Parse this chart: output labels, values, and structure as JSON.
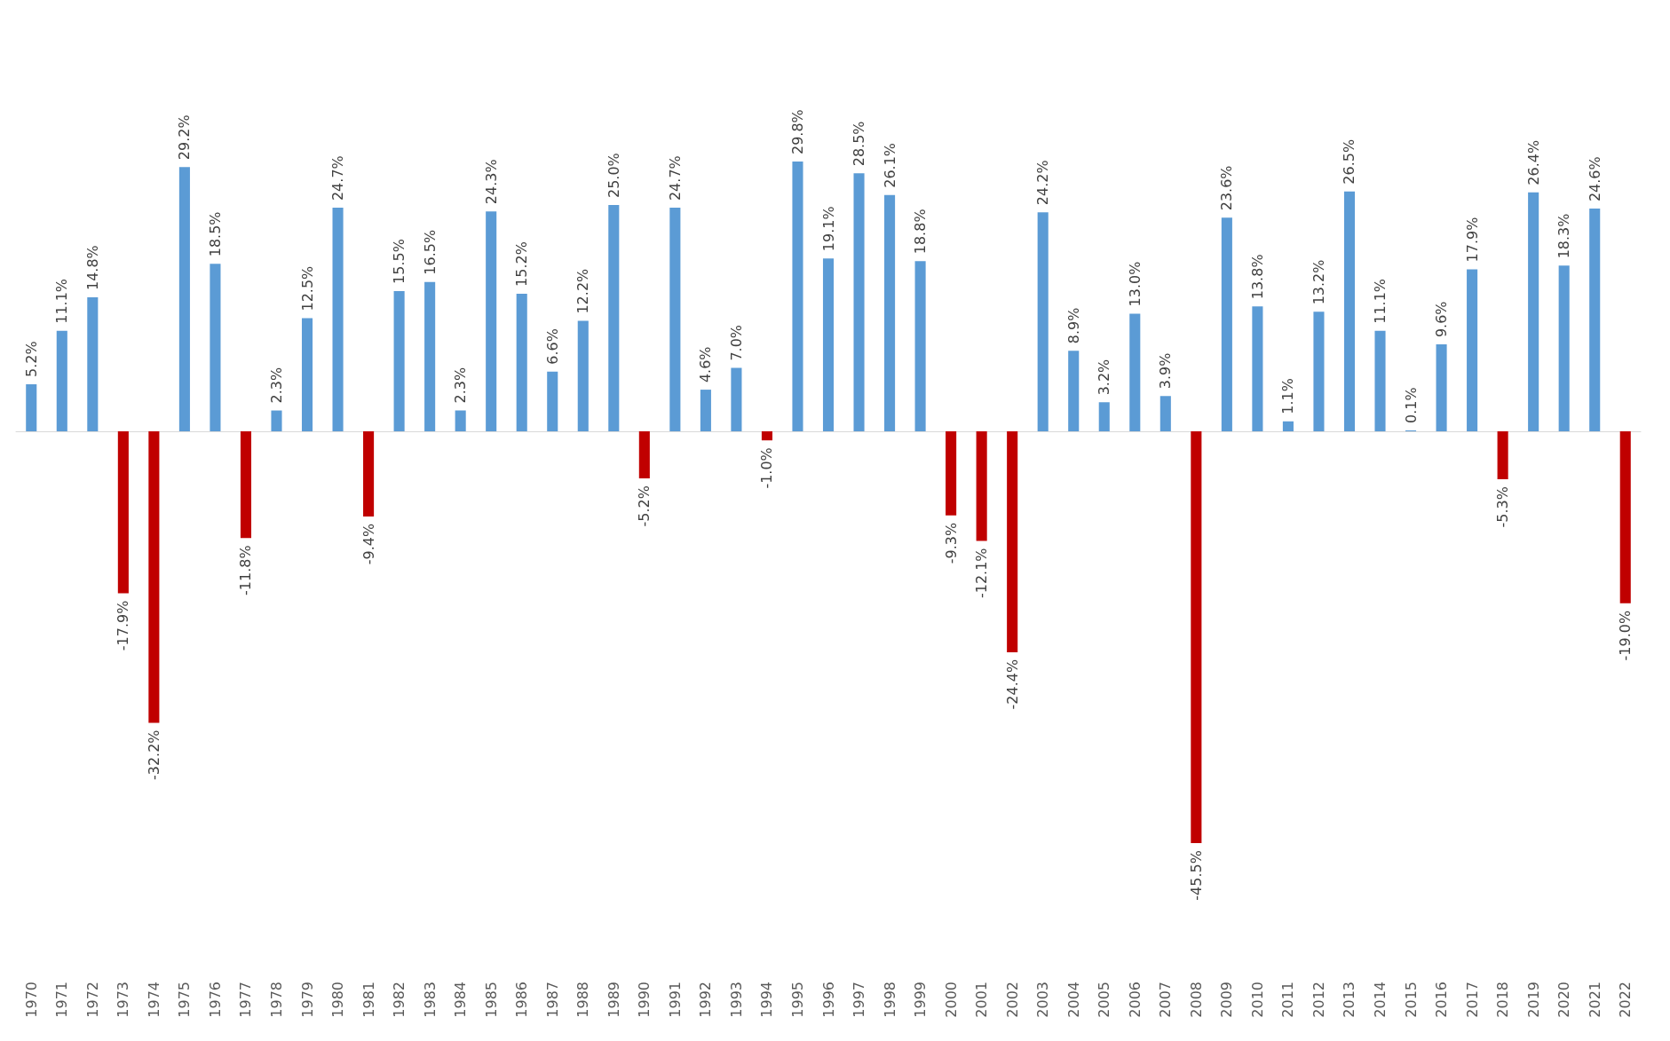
{
  "chart_data": {
    "type": "bar",
    "categories": [
      "1970",
      "1971",
      "1972",
      "1973",
      "1974",
      "1975",
      "1976",
      "1977",
      "1978",
      "1979",
      "1980",
      "1981",
      "1982",
      "1983",
      "1984",
      "1985",
      "1986",
      "1987",
      "1988",
      "1989",
      "1990",
      "1991",
      "1992",
      "1993",
      "1994",
      "1995",
      "1996",
      "1997",
      "1998",
      "1999",
      "2000",
      "2001",
      "2002",
      "2003",
      "2004",
      "2005",
      "2006",
      "2007",
      "2008",
      "2009",
      "2010",
      "2011",
      "2012",
      "2013",
      "2014",
      "2015",
      "2016",
      "2017",
      "2018",
      "2019",
      "2020",
      "2021",
      "2022"
    ],
    "values": [
      5.2,
      11.1,
      14.8,
      -17.9,
      -32.2,
      29.2,
      18.5,
      -11.8,
      2.3,
      12.5,
      24.7,
      -9.4,
      15.5,
      16.5,
      2.3,
      24.3,
      15.2,
      6.6,
      12.2,
      25.0,
      -5.2,
      24.7,
      4.6,
      7.0,
      -1.0,
      29.8,
      19.1,
      28.5,
      26.1,
      18.8,
      -9.3,
      -12.1,
      -24.4,
      24.2,
      8.9,
      3.2,
      13.0,
      3.9,
      -45.5,
      23.6,
      13.8,
      1.1,
      13.2,
      26.5,
      11.1,
      0.1,
      9.6,
      17.9,
      -5.3,
      26.4,
      18.3,
      24.6,
      -19.0
    ],
    "value_labels": [
      "5.2%",
      "11.1%",
      "14.8%",
      "-17.9%",
      "-32.2%",
      "29.2%",
      "18.5%",
      "-11.8%",
      "2.3%",
      "12.5%",
      "24.7%",
      "-9.4%",
      "15.5%",
      "16.5%",
      "2.3%",
      "24.3%",
      "15.2%",
      "6.6%",
      "12.2%",
      "25.0%",
      "-5.2%",
      "24.7%",
      "4.6%",
      "7.0%",
      "-1.0%",
      "29.8%",
      "19.1%",
      "28.5%",
      "26.1%",
      "18.8%",
      "-9.3%",
      "-12.1%",
      "-24.4%",
      "24.2%",
      "8.9%",
      "3.2%",
      "13.0%",
      "3.9%",
      "-45.5%",
      "23.6%",
      "13.8%",
      "1.1%",
      "13.2%",
      "26.5%",
      "11.1%",
      "0.1%",
      "9.6%",
      "17.9%",
      "-5.3%",
      "26.4%",
      "18.3%",
      "24.6%",
      "-19.0%"
    ],
    "colors": [
      "#5b9bd5",
      "#5b9bd5",
      "#5b9bd5",
      "#c00000",
      "#c00000",
      "#5b9bd5",
      "#5b9bd5",
      "#c00000",
      "#5b9bd5",
      "#5b9bd5",
      "#5b9bd5",
      "#c00000",
      "#5b9bd5",
      "#5b9bd5",
      "#5b9bd5",
      "#5b9bd5",
      "#5b9bd5",
      "#5b9bd5",
      "#5b9bd5",
      "#5b9bd5",
      "#c00000",
      "#5b9bd5",
      "#5b9bd5",
      "#5b9bd5",
      "#c00000",
      "#5b9bd5",
      "#5b9bd5",
      "#5b9bd5",
      "#5b9bd5",
      "#5b9bd5",
      "#c00000",
      "#c00000",
      "#c00000",
      "#5b9bd5",
      "#5b9bd5",
      "#5b9bd5",
      "#5b9bd5",
      "#5b9bd5",
      "#c00000",
      "#5b9bd5",
      "#5b9bd5",
      "#5b9bd5",
      "#5b9bd5",
      "#5b9bd5",
      "#5b9bd5",
      "#5b9bd5",
      "#5b9bd5",
      "#5b9bd5",
      "#c00000",
      "#5b9bd5",
      "#5b9bd5",
      "#5b9bd5",
      "#c00000"
    ]
  }
}
